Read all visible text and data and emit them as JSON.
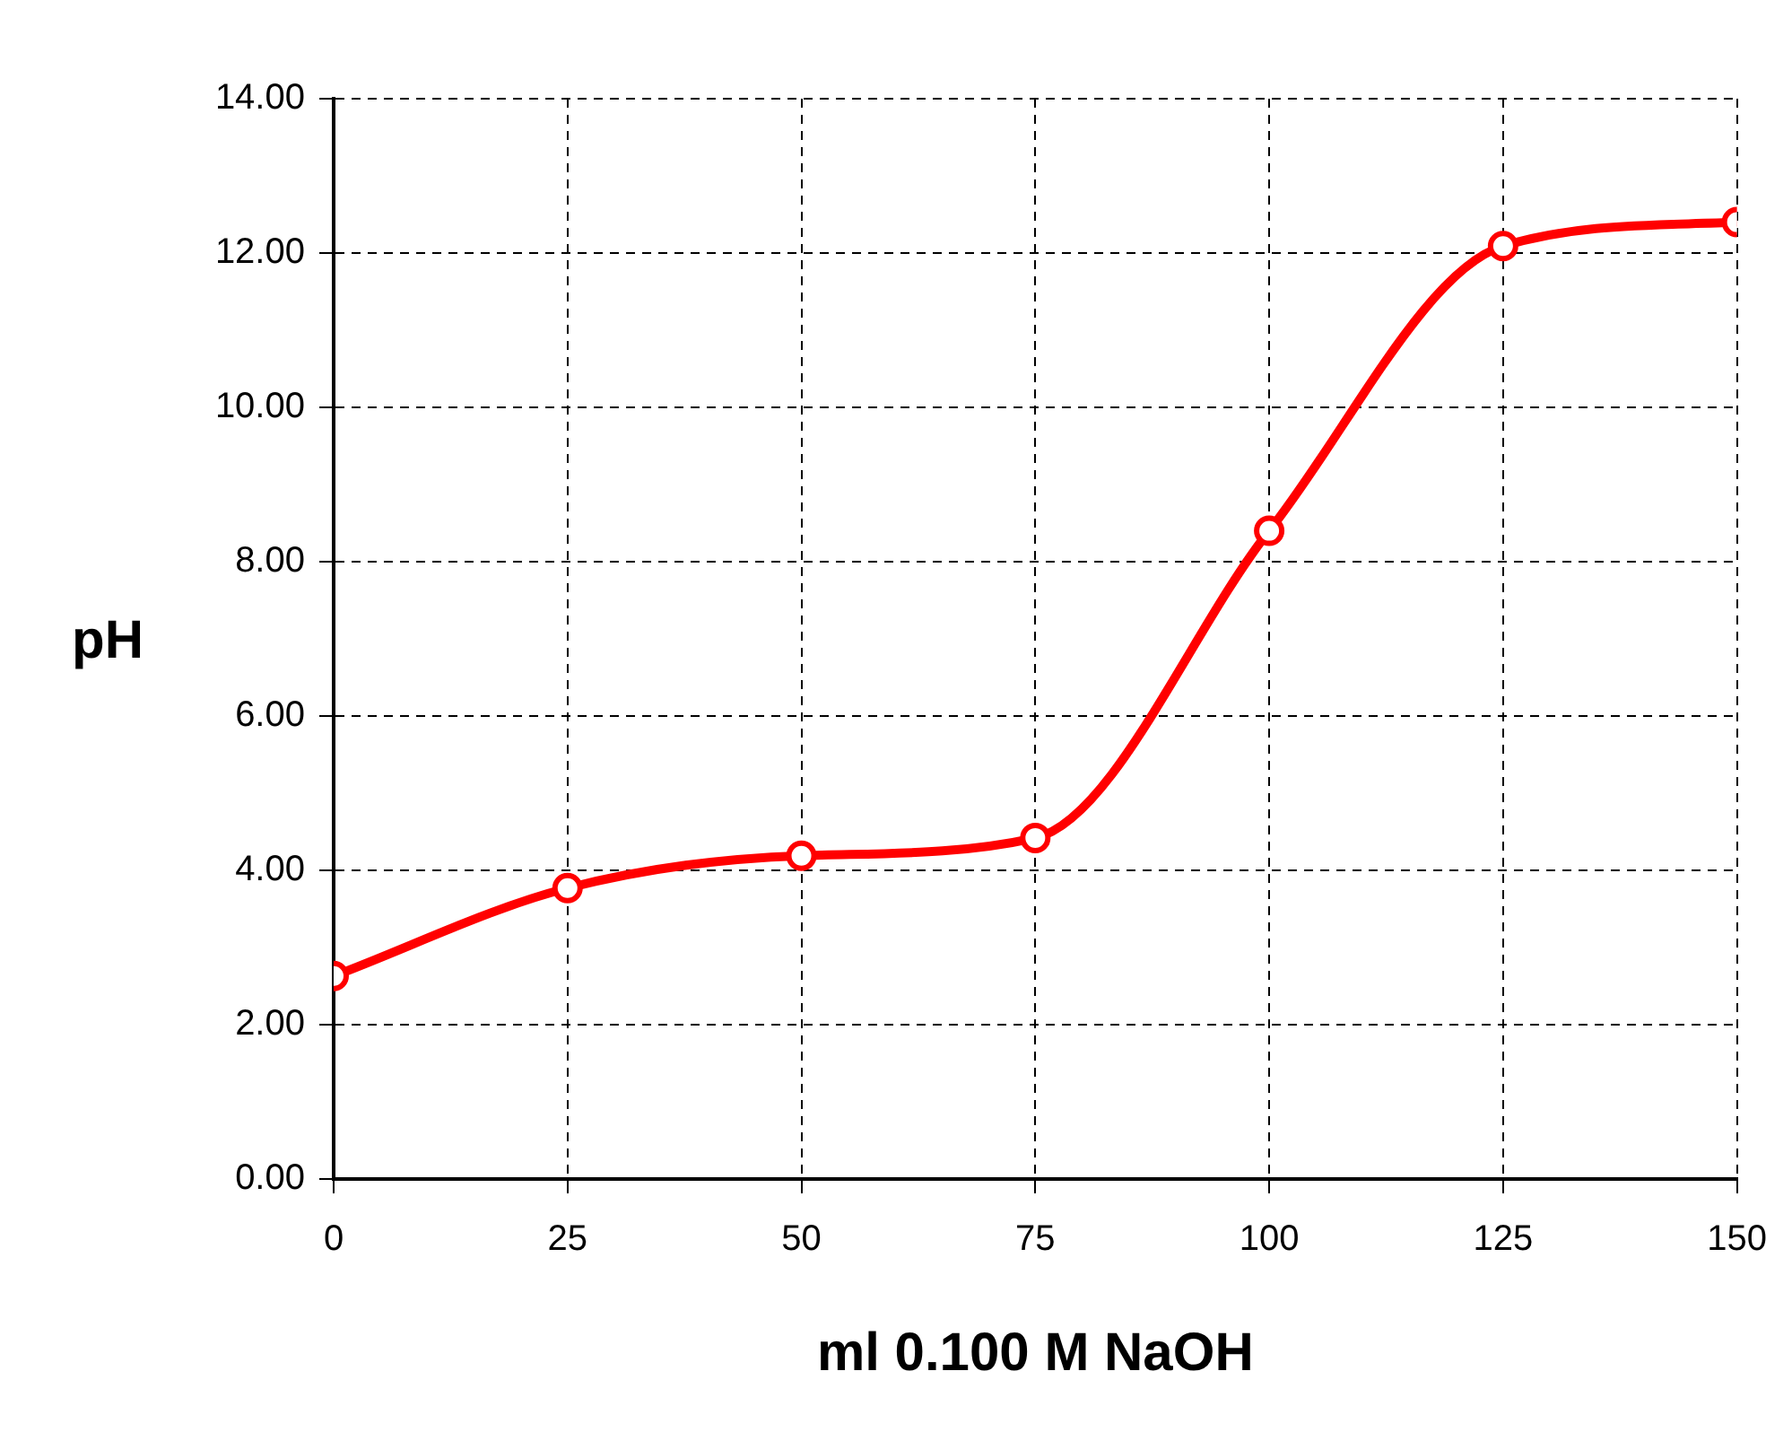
{
  "chart_data": {
    "type": "line",
    "xlabel": "ml 0.100 M NaOH",
    "ylabel": "pH",
    "x": [
      0,
      25,
      50,
      75,
      100,
      125,
      150
    ],
    "series": [
      {
        "color": "#ff0000",
        "values": [
          2.63,
          3.77,
          4.19,
          4.42,
          8.4,
          12.09,
          12.4
        ]
      }
    ],
    "xlim": [
      0,
      150
    ],
    "xticks": [
      0,
      25,
      50,
      75,
      100,
      125,
      150
    ],
    "ylim": [
      0,
      14
    ],
    "yticks": [
      {
        "value": 0,
        "label": "0.00"
      },
      {
        "value": 2,
        "label": "2.00"
      },
      {
        "value": 4,
        "label": "4.00"
      },
      {
        "value": 6,
        "label": "6.00"
      },
      {
        "value": 8,
        "label": "8.00"
      },
      {
        "value": 10,
        "label": "10.00"
      },
      {
        "value": 12,
        "label": "12.00"
      },
      {
        "value": 14,
        "label": "14.00"
      }
    ],
    "grid": true,
    "legend": false,
    "marker": "circle",
    "line_style": "solid"
  }
}
